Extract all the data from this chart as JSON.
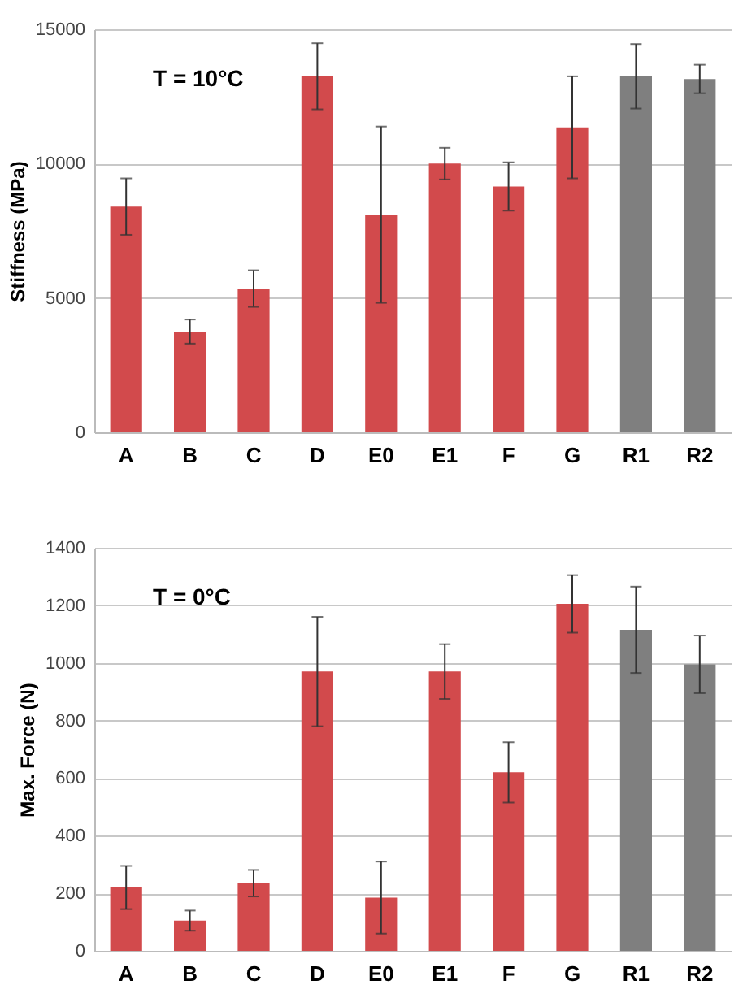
{
  "chart_data": [
    {
      "type": "bar",
      "ylabel": "Stiffness (MPa)",
      "annotations": [
        "T = 10°C"
      ],
      "categories": [
        "A",
        "B",
        "C",
        "D",
        "E0",
        "E1",
        "F",
        "G",
        "R1",
        "R2"
      ],
      "values": [
        8400,
        3750,
        5350,
        13250,
        8100,
        10000,
        9150,
        11350,
        13250,
        13150
      ],
      "errors": [
        1050,
        450,
        680,
        1230,
        3280,
        590,
        900,
        1900,
        1200,
        530
      ],
      "colors": [
        "#d24a4c",
        "#d24a4c",
        "#d24a4c",
        "#d24a4c",
        "#d24a4c",
        "#d24a4c",
        "#d24a4c",
        "#d24a4c",
        "#7f7f7f",
        "#7f7f7f"
      ],
      "ylim": [
        0,
        15000
      ],
      "yticks": [
        0,
        5000,
        10000,
        15000
      ],
      "grid": "y"
    },
    {
      "type": "bar",
      "ylabel": "Max. Force (N)",
      "annotations": [
        "T = 0°C"
      ],
      "categories": [
        "A",
        "B",
        "C",
        "D",
        "E0",
        "E1",
        "F",
        "G",
        "R1",
        "R2"
      ],
      "values": [
        220,
        105,
        235,
        970,
        185,
        970,
        620,
        1205,
        1115,
        995
      ],
      "errors": [
        75,
        35,
        46,
        190,
        125,
        95,
        105,
        100,
        150,
        100
      ],
      "colors": [
        "#d24a4c",
        "#d24a4c",
        "#d24a4c",
        "#d24a4c",
        "#d24a4c",
        "#d24a4c",
        "#d24a4c",
        "#d24a4c",
        "#7f7f7f",
        "#7f7f7f"
      ],
      "ylim": [
        0,
        1400
      ],
      "yticks": [
        0,
        200,
        400,
        600,
        800,
        1000,
        1200,
        1400
      ],
      "grid": "y"
    }
  ]
}
